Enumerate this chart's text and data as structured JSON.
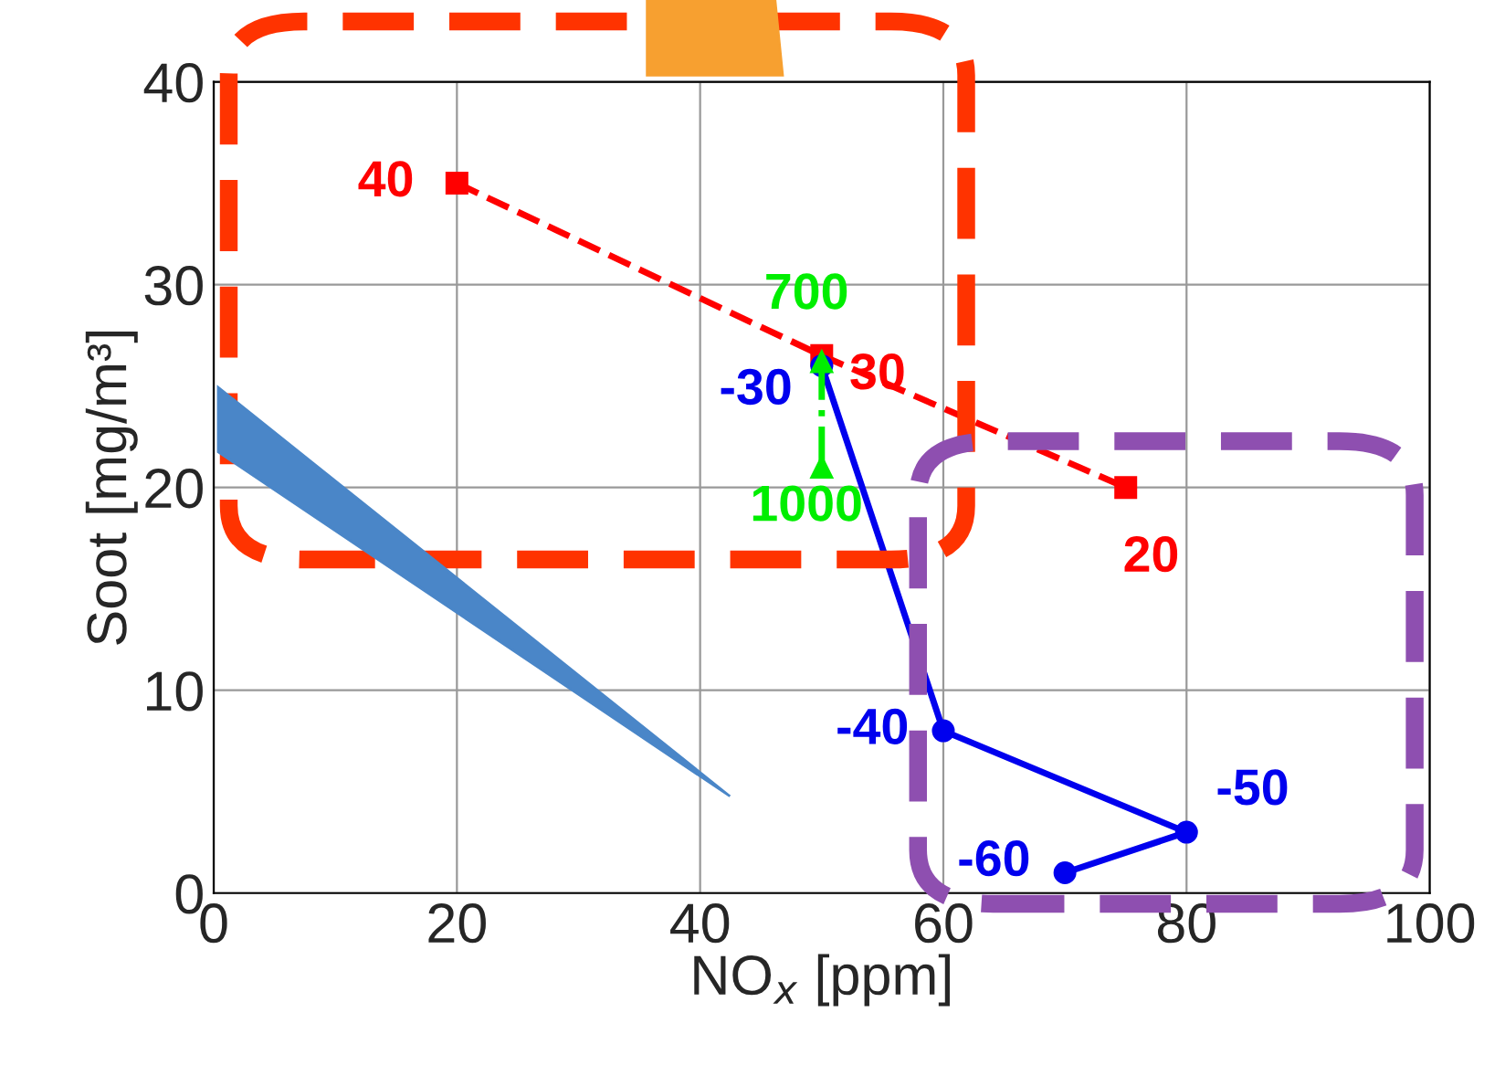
{
  "chart_data": {
    "type": "line",
    "xlabel": "NO$_{x}$ [ppm]",
    "ylabel": "Soot [mg/m³]",
    "xlim": [
      0,
      100
    ],
    "ylim": [
      0,
      40
    ],
    "xticks": [
      0,
      20,
      40,
      60,
      80,
      100
    ],
    "yticks": [
      0,
      10,
      20,
      30,
      40
    ],
    "grid": true,
    "series": [
      {
        "color": "#ff0000",
        "x": [
          20,
          50,
          75
        ],
        "values": [
          35,
          26.5,
          20
        ],
        "marker": "square",
        "line_style": "dashed"
      },
      {
        "color": "#00ee00",
        "x": [
          50,
          50
        ],
        "values": [
          21,
          26.2
        ],
        "marker": "triangle",
        "line_style": "dashdot"
      },
      {
        "color": "#0000ee",
        "x": [
          50,
          60,
          80,
          70
        ],
        "values": [
          26,
          8,
          3,
          1
        ],
        "marker": "circle",
        "line_style": "solid"
      }
    ],
    "annotations": [
      {
        "text": "40",
        "x": 20,
        "y": 35
      },
      {
        "text": "30",
        "x": 50,
        "y": 26.5
      },
      {
        "text": "20",
        "x": 75,
        "y": 20
      },
      {
        "text": "1000",
        "x": 50,
        "y": 21
      },
      {
        "text": "700",
        "x": 50,
        "y": 26.2
      },
      {
        "text": "-30",
        "x": 50,
        "y": 26
      },
      {
        "text": "-40",
        "x": 60,
        "y": 8
      },
      {
        "text": "-50",
        "x": 80,
        "y": 3
      },
      {
        "text": "-60",
        "x": 70,
        "y": 1
      }
    ]
  }
}
